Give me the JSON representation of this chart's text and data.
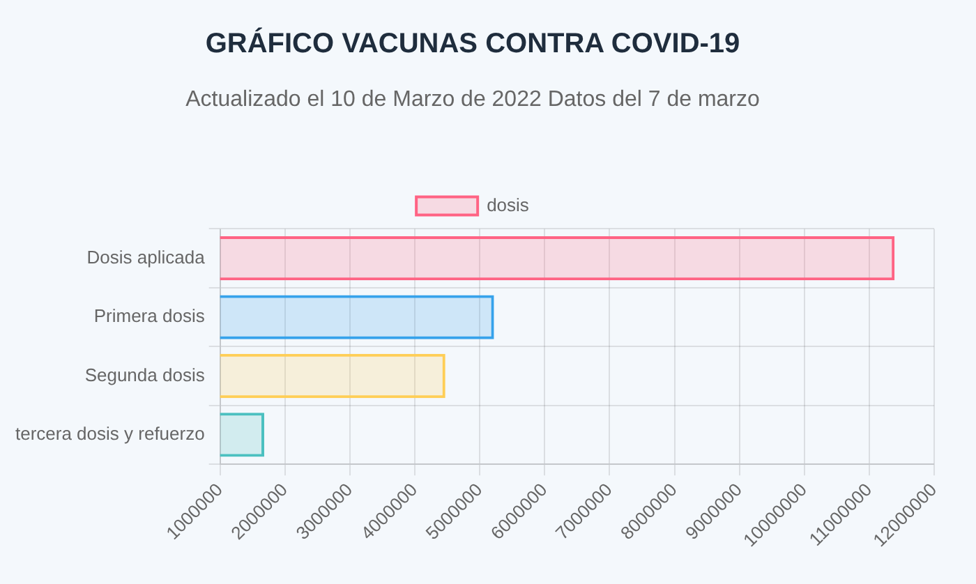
{
  "chart_data": {
    "type": "bar",
    "orientation": "horizontal",
    "title": "GRÁFICO VACUNAS CONTRA COVID-19",
    "subtitle": "Actualizado el 10 de Marzo de 2022 Datos del 7 de marzo",
    "categories": [
      "Dosis aplicada",
      "Primera dosis",
      "Segunda dosis",
      "tercera dosis y refuerzo"
    ],
    "series": [
      {
        "name": "dosis",
        "values": [
          11390000,
          5220000,
          4470000,
          1680000
        ],
        "colors": [
          "#ff6384",
          "#36a2eb",
          "#ffce56",
          "#4bc0c0"
        ]
      }
    ],
    "xlim": [
      1000000,
      12000000
    ],
    "xticks": [
      1000000,
      2000000,
      3000000,
      4000000,
      5000000,
      6000000,
      7000000,
      8000000,
      9000000,
      10000000,
      11000000,
      12000000
    ],
    "grid": true,
    "legend": "top"
  }
}
